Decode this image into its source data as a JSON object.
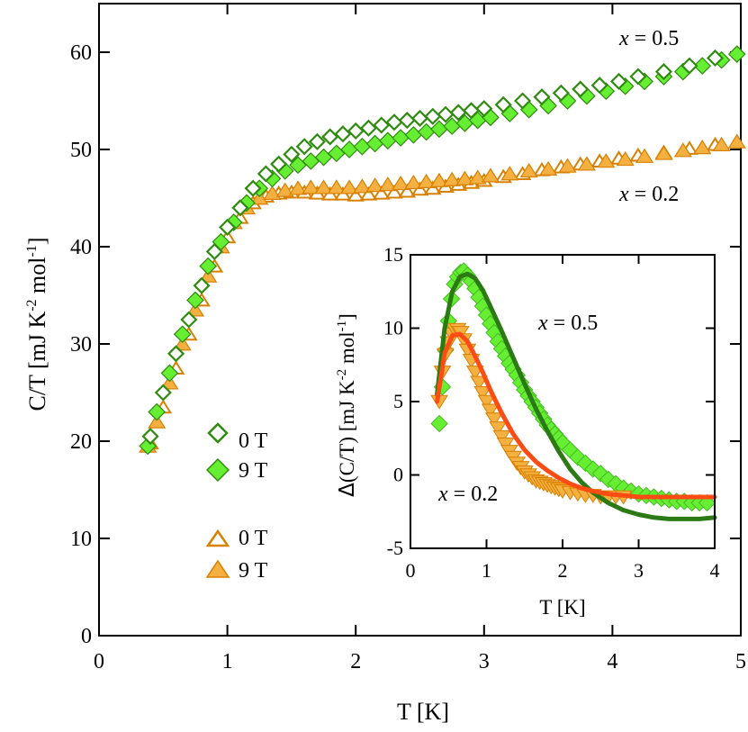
{
  "colors": {
    "green_dark": "#2e8b0e",
    "green_light": "#66ee33",
    "orange_dark": "#d88000",
    "orange_light": "#f4b040",
    "fit_green": "#2c7a14",
    "fit_red": "#ff4b14"
  },
  "chart_data": [
    {
      "type": "scatter",
      "role": "main",
      "xlabel": "T [K]",
      "ylabel": "C/T [mJ K-2 mol-1]",
      "ylabel_parts": {
        "base": "C/T [mJ K",
        "exp1": "-2",
        "mid": " mol",
        "exp2": "-1",
        "end": "]"
      },
      "xlim": [
        0,
        5
      ],
      "ylim": [
        0,
        65
      ],
      "xticks": [
        0,
        1,
        2,
        3,
        4,
        5
      ],
      "yticks": [
        0,
        10,
        20,
        30,
        40,
        50,
        60
      ],
      "annotations": [
        {
          "text_italic": "x",
          "text": " = 0.5",
          "x": 4.5,
          "y": 61
        },
        {
          "text_italic": "x",
          "text": " = 0.2",
          "x": 4.5,
          "y": 45
        }
      ],
      "legend": [
        {
          "label": "0 T",
          "marker": "open-diamond",
          "series": "x05_0T"
        },
        {
          "label": "9 T",
          "marker": "filled-diamond",
          "series": "x05_9T"
        },
        {
          "label": "0 T",
          "marker": "open-triangle",
          "series": "x02_0T"
        },
        {
          "label": "9 T",
          "marker": "filled-triangle",
          "series": "x02_9T"
        }
      ],
      "series": [
        {
          "name": "x05_0T",
          "marker": "open-diamond",
          "x": [
            0.4,
            0.5,
            0.6,
            0.7,
            0.8,
            0.9,
            1.0,
            1.1,
            1.2,
            1.3,
            1.4,
            1.5,
            1.6,
            1.7,
            1.8,
            1.9,
            2.0,
            2.1,
            2.2,
            2.3,
            2.4,
            2.5,
            2.6,
            2.7,
            2.8,
            2.9,
            3.0,
            3.15,
            3.3,
            3.45,
            3.6,
            3.75,
            3.9,
            4.05,
            4.2,
            4.4,
            4.6,
            4.8
          ],
          "y": [
            20.5,
            25,
            29,
            32.5,
            36,
            39.5,
            42,
            44,
            46,
            47.5,
            48.5,
            49.5,
            50.3,
            50.8,
            51.3,
            51.6,
            51.9,
            52.2,
            52.5,
            52.8,
            53,
            53.2,
            53.4,
            53.6,
            53.8,
            54,
            54.2,
            54.6,
            55,
            55.4,
            55.8,
            56.2,
            56.6,
            57,
            57.5,
            58,
            58.6,
            59.4
          ]
        },
        {
          "name": "x05_9T",
          "marker": "filled-diamond",
          "x": [
            0.38,
            0.45,
            0.55,
            0.65,
            0.75,
            0.85,
            0.95,
            1.05,
            1.15,
            1.25,
            1.35,
            1.45,
            1.55,
            1.65,
            1.75,
            1.85,
            1.95,
            2.05,
            2.15,
            2.25,
            2.35,
            2.45,
            2.55,
            2.65,
            2.75,
            2.85,
            2.95,
            3.05,
            3.2,
            3.35,
            3.5,
            3.65,
            3.8,
            3.95,
            4.1,
            4.25,
            4.4,
            4.55,
            4.7,
            4.85,
            4.97
          ],
          "y": [
            19.5,
            23,
            27,
            31,
            34.5,
            38,
            40.5,
            42.5,
            44.5,
            46,
            47,
            47.8,
            48.4,
            48.8,
            49.2,
            49.6,
            50,
            50.3,
            50.6,
            50.9,
            51.2,
            51.5,
            51.8,
            52.1,
            52.4,
            52.7,
            53,
            53.3,
            53.7,
            54.1,
            54.5,
            55,
            55.5,
            56,
            56.5,
            57,
            57.5,
            58,
            58.6,
            59.2,
            59.8
          ]
        },
        {
          "name": "x02_0T",
          "marker": "open-triangle",
          "x": [
            0.4,
            0.5,
            0.6,
            0.7,
            0.8,
            0.9,
            1.0,
            1.1,
            1.2,
            1.3,
            1.4,
            1.5,
            1.6,
            1.7,
            1.8,
            1.9,
            2.0,
            2.1,
            2.2,
            2.3,
            2.4,
            2.5,
            2.6,
            2.7,
            2.8,
            2.9,
            3.0,
            3.15,
            3.3,
            3.45,
            3.6,
            3.75,
            3.9,
            4.05,
            4.2,
            4.4,
            4.6,
            4.8
          ],
          "y": [
            19.8,
            23.5,
            27.5,
            31,
            34.5,
            38,
            41,
            43,
            44.5,
            45.2,
            45.5,
            45.6,
            45.6,
            45.5,
            45.4,
            45.4,
            45.3,
            45.4,
            45.5,
            45.6,
            45.7,
            45.9,
            46,
            46.2,
            46.4,
            46.6,
            46.8,
            47.2,
            47.5,
            47.9,
            48.2,
            48.5,
            48.8,
            49.1,
            49.4,
            49.7,
            50.1,
            50.5
          ]
        },
        {
          "name": "x02_9T",
          "marker": "filled-triangle",
          "x": [
            0.38,
            0.45,
            0.55,
            0.65,
            0.75,
            0.85,
            0.95,
            1.05,
            1.15,
            1.25,
            1.35,
            1.45,
            1.55,
            1.65,
            1.75,
            1.85,
            1.95,
            2.05,
            2.15,
            2.25,
            2.35,
            2.45,
            2.55,
            2.65,
            2.75,
            2.85,
            2.95,
            3.05,
            3.2,
            3.35,
            3.5,
            3.65,
            3.8,
            3.95,
            4.1,
            4.25,
            4.4,
            4.55,
            4.7,
            4.85,
            4.97
          ],
          "y": [
            19.5,
            22,
            26,
            30,
            33.5,
            37,
            40,
            42.5,
            44,
            45,
            45.5,
            45.8,
            46,
            46.1,
            46.1,
            46.1,
            46.1,
            46.2,
            46.3,
            46.4,
            46.5,
            46.6,
            46.7,
            46.8,
            46.9,
            47,
            47.1,
            47.3,
            47.5,
            47.8,
            48,
            48.3,
            48.5,
            48.8,
            49,
            49.3,
            49.6,
            49.9,
            50.2,
            50.5,
            50.8
          ]
        }
      ]
    },
    {
      "type": "scatter",
      "role": "inset",
      "xlabel": "T [K]",
      "ylabel": "Δ(C/T) [mJ K-2 mol-1]",
      "ylabel_parts": {
        "base": "(C/T) [mJ K",
        "exp1": "-2",
        "mid": " mol",
        "exp2": "-1",
        "end": "]"
      },
      "xlim": [
        0,
        4
      ],
      "ylim": [
        -5,
        15
      ],
      "xticks": [
        0,
        1,
        2,
        3,
        4
      ],
      "yticks": [
        -5,
        0,
        5,
        10,
        15
      ],
      "annotations": [
        {
          "text_italic": "x",
          "text": " = 0.5",
          "x": 2.3,
          "y": 10.5
        },
        {
          "text_italic": "x",
          "text": " = 0.2",
          "x": 0.55,
          "y": -1.5
        }
      ],
      "series": [
        {
          "name": "inset_x05_data",
          "marker": "filled-diamond",
          "x": [
            0.38,
            0.42,
            0.46,
            0.5,
            0.54,
            0.58,
            0.62,
            0.66,
            0.7,
            0.75,
            0.8,
            0.85,
            0.9,
            0.95,
            1.0,
            1.05,
            1.1,
            1.15,
            1.2,
            1.25,
            1.3,
            1.35,
            1.4,
            1.45,
            1.5,
            1.55,
            1.6,
            1.65,
            1.7,
            1.75,
            1.8,
            1.85,
            1.9,
            1.95,
            2.0,
            2.1,
            2.2,
            2.3,
            2.4,
            2.5,
            2.6,
            2.7,
            2.8,
            2.9,
            3.0,
            3.1,
            3.2,
            3.3,
            3.4,
            3.5,
            3.6,
            3.7,
            3.8,
            3.9
          ],
          "y": [
            3.5,
            6,
            8.5,
            10.5,
            12,
            13,
            13.5,
            13.8,
            13.9,
            13.6,
            13.2,
            12.7,
            12.1,
            11.5,
            10.9,
            10.3,
            9.7,
            9.1,
            8.6,
            8.1,
            7.6,
            7.2,
            6.8,
            6.3,
            5.8,
            5.4,
            5,
            4.6,
            4.2,
            3.8,
            3.4,
            3.1,
            2.8,
            2.5,
            2.2,
            1.7,
            1.2,
            0.8,
            0.4,
            0.1,
            -0.3,
            -0.6,
            -0.9,
            -1.1,
            -1.3,
            -1.4,
            -1.5,
            -1.6,
            -1.7,
            -1.8,
            -1.8,
            -1.9,
            -1.9,
            -1.9
          ]
        },
        {
          "name": "inset_x02_data",
          "marker": "filled-triangle-down",
          "x": [
            0.38,
            0.42,
            0.46,
            0.5,
            0.54,
            0.58,
            0.62,
            0.66,
            0.7,
            0.75,
            0.8,
            0.85,
            0.9,
            0.95,
            1.0,
            1.05,
            1.1,
            1.15,
            1.2,
            1.25,
            1.3,
            1.35,
            1.4,
            1.45,
            1.5,
            1.55,
            1.6,
            1.65,
            1.7,
            1.75,
            1.8,
            1.85,
            1.9,
            1.95,
            2.0,
            2.1,
            2.2,
            2.3,
            2.4,
            2.5,
            2.6,
            2.7,
            2.8
          ],
          "y": [
            5,
            7,
            8.2,
            9,
            9.6,
            9.9,
            9.9,
            9.7,
            9.2,
            8.5,
            7.8,
            7,
            6.3,
            5.6,
            5,
            4.4,
            3.8,
            3.2,
            2.6,
            2.1,
            1.6,
            1.2,
            0.8,
            0.5,
            0.2,
            0,
            -0.2,
            -0.4,
            -0.5,
            -0.6,
            -0.7,
            -0.8,
            -0.9,
            -1,
            -1.1,
            -1.2,
            -1.3,
            -1.4,
            -1.4,
            -1.5,
            -1.5,
            -1.5,
            -1.5
          ]
        },
        {
          "name": "fit_x05",
          "line": true,
          "color": "fit_green",
          "x": [
            0.35,
            0.45,
            0.55,
            0.65,
            0.75,
            0.85,
            0.95,
            1.05,
            1.2,
            1.35,
            1.5,
            1.65,
            1.8,
            1.95,
            2.1,
            2.25,
            2.4,
            2.6,
            2.8,
            3.0,
            3.2,
            3.4,
            3.6,
            3.8,
            4.0
          ],
          "y": [
            5.5,
            10,
            12.5,
            13.5,
            13.7,
            13.4,
            12.6,
            11.5,
            9.8,
            8,
            6.2,
            4.5,
            3,
            1.6,
            0.4,
            -0.5,
            -1.2,
            -1.9,
            -2.4,
            -2.7,
            -2.9,
            -3,
            -3,
            -3,
            -2.9
          ]
        },
        {
          "name": "fit_x02",
          "line": true,
          "color": "fit_red",
          "x": [
            0.35,
            0.45,
            0.55,
            0.65,
            0.75,
            0.85,
            0.95,
            1.05,
            1.2,
            1.35,
            1.5,
            1.65,
            1.8,
            1.95,
            2.1,
            2.25,
            2.4,
            2.6,
            2.8,
            3.0,
            3.2,
            3.4,
            3.6,
            3.8,
            4.0
          ],
          "y": [
            5,
            8.3,
            9.5,
            9.6,
            9.1,
            8.1,
            7,
            5.8,
            4.2,
            2.8,
            1.7,
            0.9,
            0.3,
            -0.2,
            -0.6,
            -0.9,
            -1.1,
            -1.3,
            -1.4,
            -1.5,
            -1.5,
            -1.5,
            -1.5,
            -1.5,
            -1.5
          ]
        }
      ]
    }
  ]
}
